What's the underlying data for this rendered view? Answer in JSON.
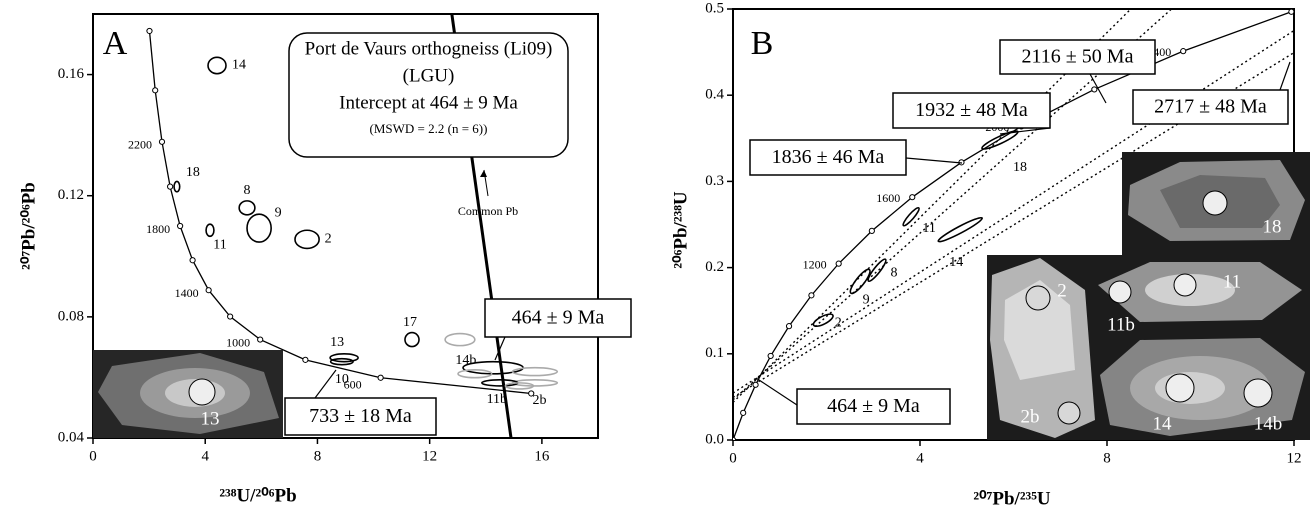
{
  "chart_data": [
    {
      "type": "concordia",
      "panel_label": "A",
      "x_label": "²³⁸U/²⁰⁶Pb",
      "y_label": "²⁰⁷Pb/²⁰⁶Pb",
      "xlim": [
        0,
        18
      ],
      "ylim": [
        0.04,
        0.18
      ],
      "xticks": [
        0,
        4,
        8,
        12,
        16
      ],
      "yticks": [
        0.04,
        0.08,
        0.12,
        0.16
      ],
      "concordia": {
        "color": "#000000",
        "x": [
          2.013,
          2.217,
          2.459,
          2.749,
          3.105,
          3.55,
          4.122,
          4.888,
          5.959,
          7.57,
          10.252,
          15.62
        ],
        "y": [
          0.1744,
          0.1548,
          0.1378,
          0.123,
          0.11,
          0.0987,
          0.0888,
          0.0801,
          0.0725,
          0.0658,
          0.0599,
          0.0547
        ],
        "point_labels": [
          null,
          null,
          "2200",
          null,
          "1800",
          null,
          "1400",
          null,
          "1000",
          null,
          "600",
          null
        ]
      },
      "ellipses": {
        "labels": [
          "14",
          "18",
          "8",
          "9",
          "11",
          "2",
          "17",
          "13",
          "10",
          null,
          null,
          "14b",
          null,
          null,
          "11b",
          "2b"
        ],
        "x": [
          4.42,
          2.99,
          5.49,
          5.92,
          4.17,
          7.63,
          11.37,
          8.95,
          8.87,
          13.08,
          14.26,
          13.61,
          15.75,
          15.75,
          14.5,
          15.2
        ],
        "y": [
          0.163,
          0.123,
          0.116,
          0.1093,
          0.1086,
          0.1056,
          0.0725,
          0.0665,
          0.0652,
          0.0725,
          0.0632,
          0.0612,
          0.0619,
          0.0582,
          0.0582,
          0.0572
        ],
        "x_err": [
          0.32,
          0.1,
          0.28,
          0.43,
          0.14,
          0.43,
          0.25,
          0.5,
          0.4,
          0.53,
          1.07,
          0.6,
          0.8,
          0.8,
          0.64,
          0.5
        ],
        "y_err": [
          0.0027,
          0.0017,
          0.0023,
          0.0046,
          0.002,
          0.003,
          0.0023,
          0.0013,
          0.001,
          0.002,
          0.002,
          0.0013,
          0.0013,
          0.001,
          0.001,
          0.001
        ],
        "rho": [
          0,
          0,
          0,
          0,
          0,
          0,
          0,
          0,
          0,
          0,
          0,
          0,
          0,
          0,
          0,
          0
        ],
        "colors": [
          "#000000",
          "#000000",
          "#000000",
          "#000000",
          "#000000",
          "#000000",
          "#000000",
          "#000000",
          "#000000",
          "#aaaaaa",
          "#000000",
          "#aaaaaa",
          "#aaaaaa",
          "#aaaaaa",
          "#000000",
          "#aaaaaa"
        ]
      },
      "lines": [
        {
          "style": "solid",
          "x": [
            12.79,
            14.9
          ],
          "y": [
            0.18,
            0.04
          ]
        }
      ],
      "info_box": [
        "Port de Vaurs orthogneiss (Li09)",
        "(LGU)",
        "Intercept at 464 ± 9 Ma",
        "(MSWD = 2.2 (n = 6))"
      ],
      "annotations": [
        "Common Pb",
        "464 ± 9 Ma",
        "733 ± 18 Ma"
      ],
      "inset_labels": [
        "13"
      ]
    },
    {
      "type": "concordia",
      "panel_label": "B",
      "x_label": "²⁰⁷Pb/²³⁵U",
      "y_label": "²⁰⁶Pb/²³⁸U",
      "xlim": [
        0,
        12
      ],
      "ylim": [
        0,
        0.5
      ],
      "xticks": [
        0,
        4,
        8,
        12
      ],
      "yticks": [
        {
          "value": 0,
          "label": "0.0"
        },
        0.1,
        0.2,
        0.3,
        0.4,
        0.5
      ],
      "concordia": {
        "color": "#000000",
        "x": [
          0,
          0.2177,
          0.4828,
          0.8056,
          1.1988,
          1.6774,
          2.2603,
          2.9701,
          3.8345,
          4.8868,
          6.168,
          7.729,
          9.63,
          11.944
        ],
        "y": [
          0,
          0.03151,
          0.06402,
          0.09754,
          0.1321,
          0.1678,
          0.2046,
          0.2426,
          0.2817,
          0.3221,
          0.3638,
          0.4067,
          0.4511,
          0.4968
        ],
        "point_labels": [
          null,
          null,
          null,
          null,
          null,
          null,
          "1200",
          null,
          "1600",
          null,
          "2000",
          null,
          "2400",
          null
        ]
      },
      "ellipses": {
        "labels": [
          "18",
          "11",
          "14",
          "8",
          "9",
          "2"
        ],
        "x": [
          5.71,
          3.81,
          4.86,
          3.08,
          2.72,
          1.93
        ],
        "y": [
          0.348,
          0.259,
          0.244,
          0.197,
          0.184,
          0.139
        ],
        "x_err": [
          0.385,
          0.17,
          0.47,
          0.19,
          0.21,
          0.21
        ],
        "y_err": [
          0.0104,
          0.0104,
          0.0139,
          0.0128,
          0.014,
          0.007
        ],
        "rho": [
          0.9,
          0.9,
          0.95,
          0.9,
          0.85,
          0.7
        ],
        "colors": [
          "#000000",
          "#000000",
          "#000000",
          "#000000",
          "#000000",
          "#000000"
        ]
      },
      "lines": [
        {
          "style": "dotted",
          "x": [
            0,
            9.38
          ],
          "y": [
            0.0466,
            0.5
          ]
        },
        {
          "style": "dotted",
          "x": [
            0,
            8.51
          ],
          "y": [
            0.0436,
            0.5
          ]
        },
        {
          "style": "dotted",
          "x": [
            0,
            12
          ],
          "y": [
            0.0544,
            0.475
          ]
        },
        {
          "style": "dotted",
          "x": [
            0,
            12
          ],
          "y": [
            0.0494,
            0.4494
          ]
        }
      ],
      "annotations": [
        "2116 ± 50 Ma",
        "1932 ± 48 Ma",
        "1836 ± 46 Ma",
        "2717 ± 48 Ma",
        "464 ± 9 Ma"
      ],
      "inset_labels": [
        "18",
        "2",
        "11",
        "11b",
        "2b",
        "14",
        "14b"
      ]
    }
  ]
}
